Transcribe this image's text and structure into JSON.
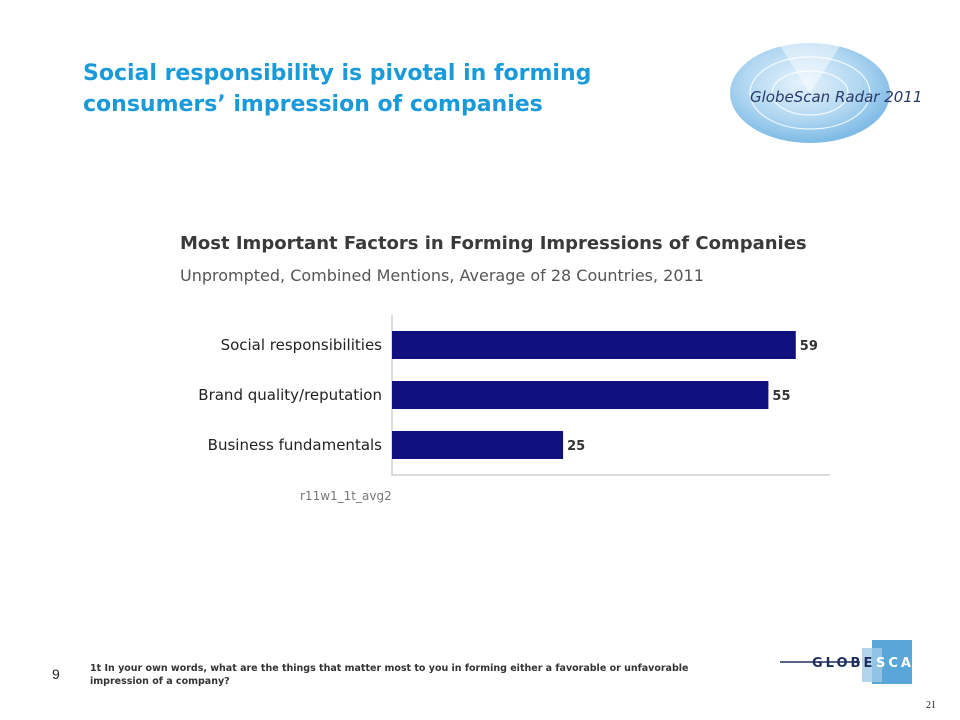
{
  "slide": {
    "title_lines": [
      "Social responsibility is pivotal in forming",
      "consumers’ impression of companies"
    ],
    "radar_logo_text": "GlobeScan Radar 2011",
    "page_number": "9",
    "footnote": "1t In your own words, what are the things that matter most to you in forming either a favorable or unfavorable impression of a company?",
    "globescan_logo": [
      "GLOBE",
      "SCAN"
    ],
    "slide_counter": "21",
    "chart_source_code": "r11w1_1t_avg2"
  },
  "colors": {
    "title_blue": "#1a9ad9",
    "bar_navy": "#10107e",
    "logo_blue": "#3d8fc9"
  },
  "chart_data": {
    "type": "bar",
    "orientation": "horizontal",
    "title": "Most Important Factors in Forming Impressions of Companies",
    "subtitle": "Unprompted, Combined Mentions, Average of 28 Countries, 2011",
    "categories": [
      "Social responsibilities",
      "Brand quality/reputation",
      "Business fundamentals"
    ],
    "values": [
      59,
      55,
      25
    ],
    "data_labels": [
      "59",
      "55",
      "25"
    ],
    "xlim": [
      0,
      64
    ],
    "grid": false,
    "legend": "none"
  }
}
